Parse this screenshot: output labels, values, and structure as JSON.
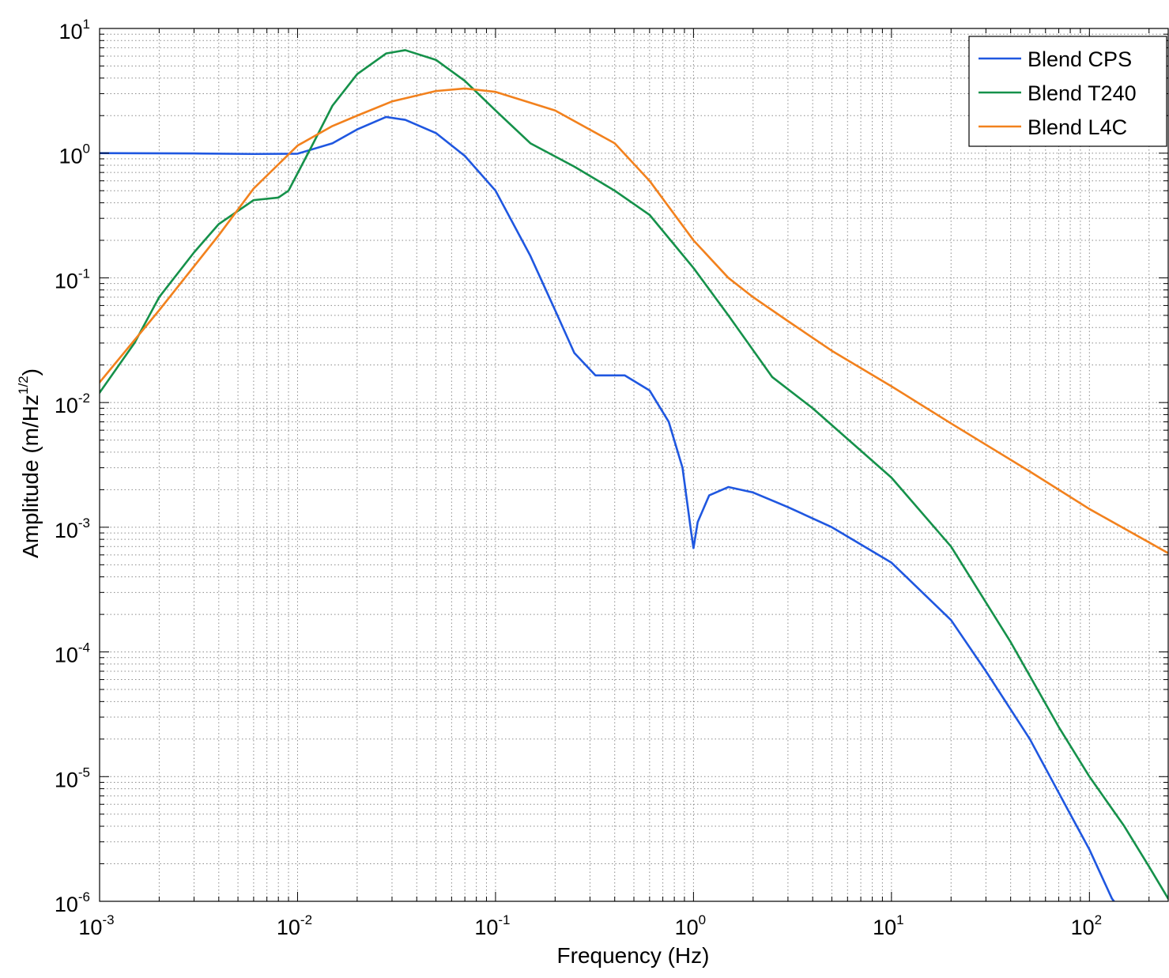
{
  "chart_data": {
    "type": "line",
    "title": "",
    "xlabel": "Frequency (Hz)",
    "ylabel": "Amplitude (m/Hz",
    "ylabel_exponent": "1/2",
    "ylabel_suffix": ")",
    "xscale": "log",
    "yscale": "log",
    "xlim": [
      0.001,
      250
    ],
    "ylim": [
      1e-06,
      10
    ],
    "grid": true,
    "legend_position": "top-right",
    "x_ticks": [
      {
        "base": "10",
        "exp": "-3",
        "value": 0.001
      },
      {
        "base": "10",
        "exp": "-2",
        "value": 0.01
      },
      {
        "base": "10",
        "exp": "-1",
        "value": 0.1
      },
      {
        "base": "10",
        "exp": "0",
        "value": 1
      },
      {
        "base": "10",
        "exp": "1",
        "value": 10
      },
      {
        "base": "10",
        "exp": "2",
        "value": 100
      }
    ],
    "y_ticks": [
      {
        "base": "10",
        "exp": "1",
        "value": 10
      },
      {
        "base": "10",
        "exp": "0",
        "value": 1
      },
      {
        "base": "10",
        "exp": "-1",
        "value": 0.1
      },
      {
        "base": "10",
        "exp": "-2",
        "value": 0.01
      },
      {
        "base": "10",
        "exp": "-3",
        "value": 0.001
      },
      {
        "base": "10",
        "exp": "-4",
        "value": 0.0001
      },
      {
        "base": "10",
        "exp": "-5",
        "value": 1e-05
      },
      {
        "base": "10",
        "exp": "-6",
        "value": 1e-06
      }
    ],
    "series": [
      {
        "name": "Blend CPS",
        "color": "#1f57e0",
        "points": [
          [
            0.001,
            1.0
          ],
          [
            0.003,
            0.995
          ],
          [
            0.006,
            0.985
          ],
          [
            0.01,
            0.99
          ],
          [
            0.015,
            1.2
          ],
          [
            0.02,
            1.55
          ],
          [
            0.028,
            1.95
          ],
          [
            0.035,
            1.85
          ],
          [
            0.05,
            1.45
          ],
          [
            0.07,
            0.95
          ],
          [
            0.1,
            0.5
          ],
          [
            0.15,
            0.15
          ],
          [
            0.2,
            0.055
          ],
          [
            0.25,
            0.025
          ],
          [
            0.32,
            0.0165
          ],
          [
            0.45,
            0.0165
          ],
          [
            0.6,
            0.0125
          ],
          [
            0.75,
            0.007
          ],
          [
            0.88,
            0.003
          ],
          [
            0.97,
            0.00095
          ],
          [
            1.0,
            0.00068
          ],
          [
            1.05,
            0.0011
          ],
          [
            1.2,
            0.0018
          ],
          [
            1.5,
            0.0021
          ],
          [
            2.0,
            0.0019
          ],
          [
            3.0,
            0.00145
          ],
          [
            5.0,
            0.001
          ],
          [
            10,
            0.00052
          ],
          [
            20,
            0.00018
          ],
          [
            30,
            7e-05
          ],
          [
            50,
            2e-05
          ],
          [
            80,
            5e-06
          ],
          [
            100,
            2.6e-06
          ],
          [
            130,
            1.05e-06
          ],
          [
            140,
            9e-07
          ]
        ]
      },
      {
        "name": "Blend T240",
        "color": "#15914a",
        "points": [
          [
            0.001,
            0.012
          ],
          [
            0.0015,
            0.03
          ],
          [
            0.002,
            0.07
          ],
          [
            0.003,
            0.16
          ],
          [
            0.004,
            0.27
          ],
          [
            0.006,
            0.42
          ],
          [
            0.008,
            0.44
          ],
          [
            0.009,
            0.5
          ],
          [
            0.012,
            1.2
          ],
          [
            0.015,
            2.4
          ],
          [
            0.02,
            4.3
          ],
          [
            0.028,
            6.3
          ],
          [
            0.035,
            6.7
          ],
          [
            0.05,
            5.6
          ],
          [
            0.07,
            3.8
          ],
          [
            0.1,
            2.2
          ],
          [
            0.15,
            1.2
          ],
          [
            0.25,
            0.78
          ],
          [
            0.4,
            0.5
          ],
          [
            0.6,
            0.32
          ],
          [
            1.0,
            0.12
          ],
          [
            1.5,
            0.05
          ],
          [
            2.5,
            0.016
          ],
          [
            4.0,
            0.009
          ],
          [
            10,
            0.0025
          ],
          [
            20,
            0.0007
          ],
          [
            40,
            0.00012
          ],
          [
            70,
            2.5e-05
          ],
          [
            100,
            1e-05
          ],
          [
            150,
            4e-06
          ],
          [
            200,
            1.9e-06
          ],
          [
            250,
            1.05e-06
          ]
        ]
      },
      {
        "name": "Blend L4C",
        "color": "#f2811d",
        "points": [
          [
            0.001,
            0.0145
          ],
          [
            0.002,
            0.055
          ],
          [
            0.004,
            0.22
          ],
          [
            0.006,
            0.52
          ],
          [
            0.01,
            1.15
          ],
          [
            0.015,
            1.65
          ],
          [
            0.02,
            2.0
          ],
          [
            0.03,
            2.6
          ],
          [
            0.05,
            3.15
          ],
          [
            0.07,
            3.3
          ],
          [
            0.1,
            3.1
          ],
          [
            0.2,
            2.2
          ],
          [
            0.4,
            1.2
          ],
          [
            0.6,
            0.6
          ],
          [
            1.0,
            0.2
          ],
          [
            1.5,
            0.1
          ],
          [
            2.0,
            0.07
          ],
          [
            3.0,
            0.045
          ],
          [
            5.0,
            0.026
          ],
          [
            10,
            0.0135
          ],
          [
            20,
            0.0068
          ],
          [
            50,
            0.0028
          ],
          [
            100,
            0.0014
          ],
          [
            250,
            0.00062
          ]
        ]
      }
    ]
  }
}
